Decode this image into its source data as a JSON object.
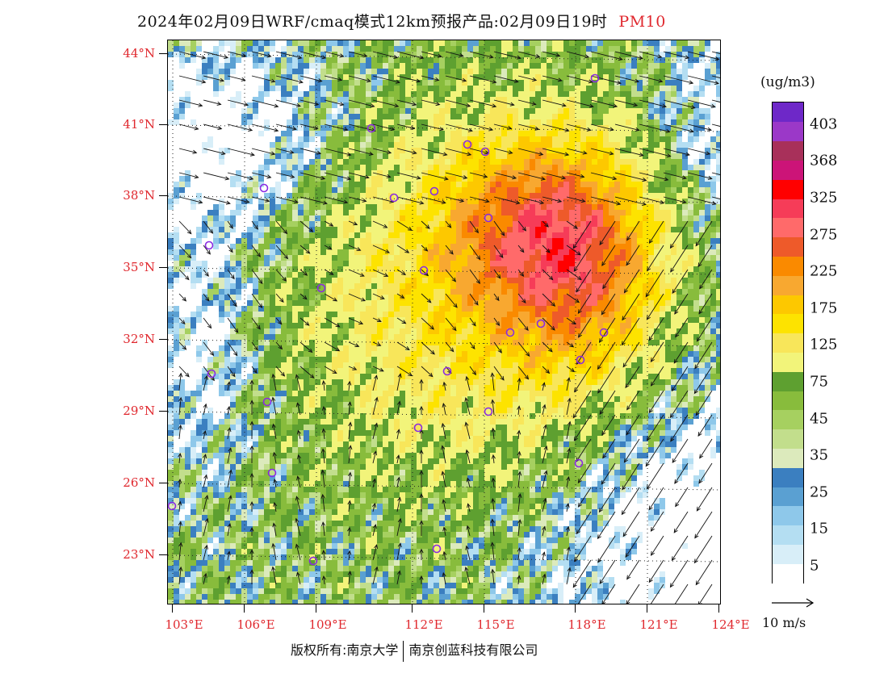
{
  "header": {
    "title": "2024年02月09日WRF/cmaq模式12km预报产品:02月09日19时",
    "product": "PM10"
  },
  "map": {
    "lat_labels": [
      "44°N",
      "41°N",
      "38°N",
      "35°N",
      "32°N",
      "29°N",
      "26°N",
      "23°N"
    ],
    "lon_labels": [
      "103°E",
      "106°E",
      "109°E",
      "112°E",
      "115°E",
      "118°E",
      "121°E",
      "124°E"
    ]
  },
  "legend": {
    "unit": "(ug/m3)",
    "colors": [
      "#ffffff",
      "#d8eef8",
      "#b4def2",
      "#8ec8ea",
      "#5aa0d2",
      "#3b7fc0",
      "#dceabc",
      "#c2de8c",
      "#a6d060",
      "#88bc3c",
      "#5ea030",
      "#f2f47a",
      "#f8e65a",
      "#fde300",
      "#fdc800",
      "#f8a830",
      "#fa8a00",
      "#ee5a2a",
      "#ff6a6a",
      "#f63c58",
      "#ff0000",
      "#cc1478",
      "#a8305a",
      "#9b38c8",
      "#6e28c8"
    ],
    "labels": [
      "5",
      "15",
      "25",
      "35",
      "45",
      "75",
      "125",
      "175",
      "225",
      "275",
      "325",
      "368",
      "403"
    ]
  },
  "wind_reference": {
    "label": "10 m/s"
  },
  "footer": {
    "copyright_left": "版权所有:南京大学",
    "copyright_right": "南京创蓝科技有限公司"
  }
}
